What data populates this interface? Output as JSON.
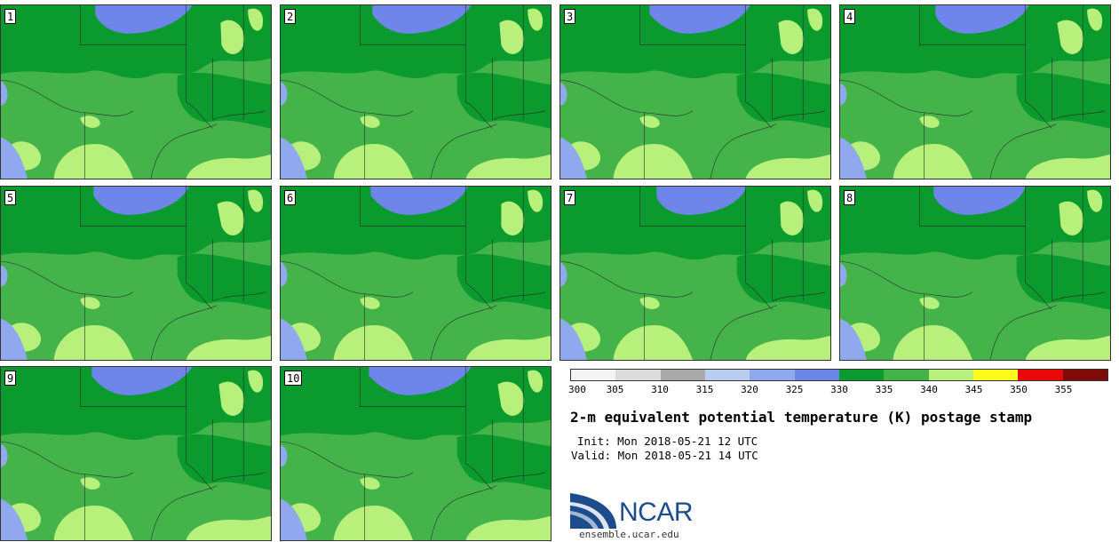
{
  "panels": [
    {
      "label": "1"
    },
    {
      "label": "2"
    },
    {
      "label": "3"
    },
    {
      "label": "4"
    },
    {
      "label": "5"
    },
    {
      "label": "6"
    },
    {
      "label": "7"
    },
    {
      "label": "8"
    },
    {
      "label": "9"
    },
    {
      "label": "10"
    }
  ],
  "colorbar": {
    "ticks": [
      "300",
      "305",
      "310",
      "315",
      "320",
      "325",
      "330",
      "335",
      "340",
      "345",
      "350",
      "355"
    ],
    "colors": [
      "#f4f4f4",
      "#dcdcdc",
      "#a9a9a9",
      "#b8cdf0",
      "#8fa8ee",
      "#6e86ea",
      "#0a9a2e",
      "#44b44a",
      "#b8f07c",
      "#fbfb1e",
      "#e80808",
      "#7e0a0a"
    ]
  },
  "title": "2-m equivalent potential temperature (K) postage stamp",
  "init": "Init: Mon 2018-05-21 12 UTC",
  "valid": "Valid: Mon 2018-05-21 14 UTC",
  "logo": {
    "text": "NCAR",
    "url": "ensemble.ucar.edu",
    "color": "#1c4c8c"
  },
  "map_colors": {
    "base": "#44b44a",
    "dark": "#0a9a2e",
    "light": "#b8f07c",
    "blue": "#6e86ea",
    "lightblue": "#8fa8ee",
    "state_lines": "#2a2a2a"
  }
}
